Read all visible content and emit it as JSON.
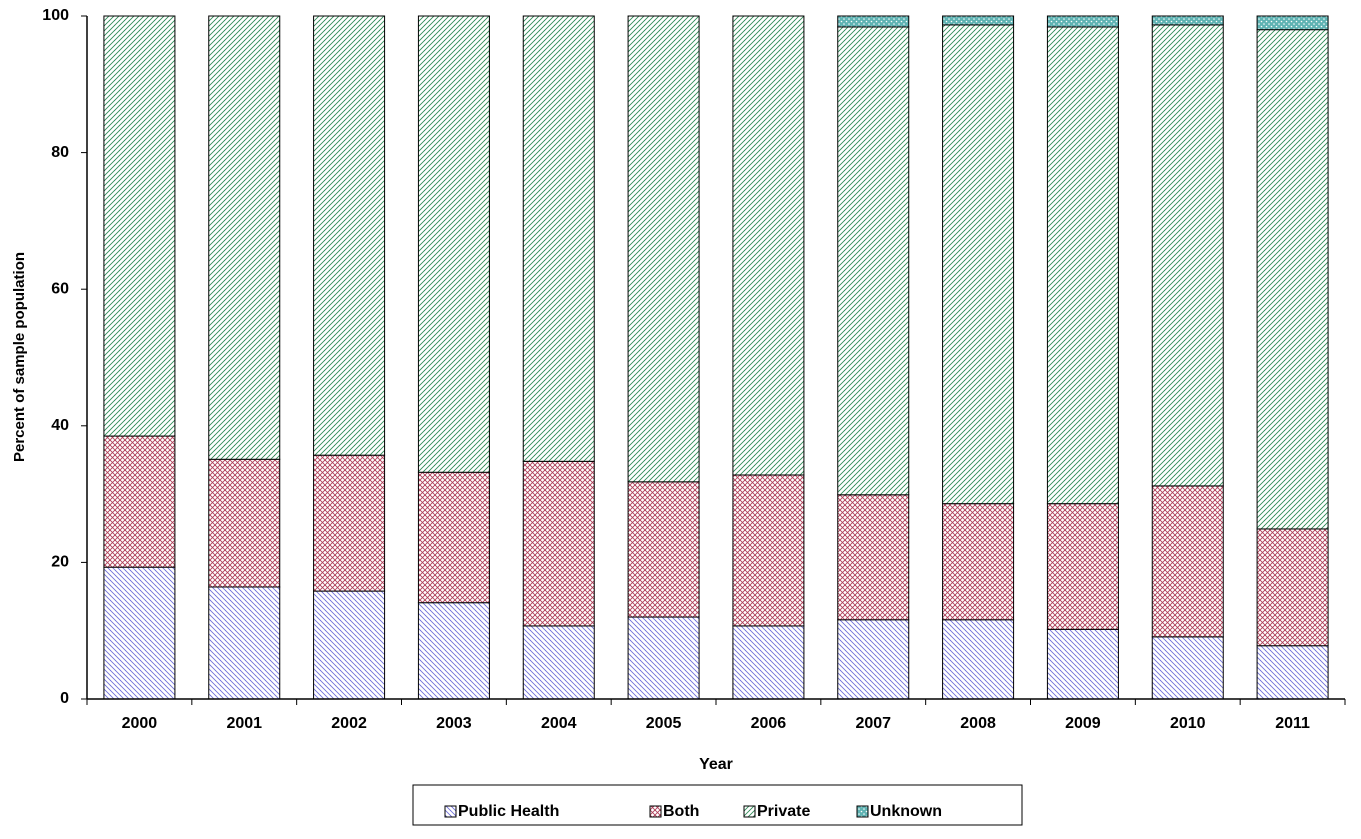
{
  "chart_data": {
    "type": "stacked_bar",
    "x_label": "Year",
    "y_label": "Percent of sample population",
    "categories": [
      "2000",
      "2001",
      "2002",
      "2003",
      "2004",
      "2005",
      "2006",
      "2007",
      "2008",
      "2009",
      "2010",
      "2011"
    ],
    "series": [
      {
        "name": "Public Health",
        "color": "#6f6fd8",
        "values": [
          19.3,
          16.4,
          15.8,
          14.1,
          10.7,
          12.0,
          10.7,
          11.6,
          11.6,
          10.2,
          9.1,
          7.8
        ]
      },
      {
        "name": "Both",
        "color": "#b0405a",
        "values": [
          19.2,
          18.7,
          19.9,
          19.1,
          24.1,
          19.8,
          22.1,
          18.3,
          17.0,
          18.4,
          22.1,
          17.1
        ]
      },
      {
        "name": "Private",
        "color": "#2e8b57",
        "values": [
          61.5,
          64.9,
          64.3,
          66.8,
          65.2,
          68.2,
          67.2,
          68.5,
          70.1,
          69.8,
          67.5,
          73.1
        ]
      },
      {
        "name": "Unknown",
        "color": "#5fb3b3",
        "values": [
          0,
          0,
          0,
          0,
          0,
          0,
          0,
          1.6,
          1.3,
          1.6,
          1.3,
          2.0
        ]
      }
    ],
    "ylim": [
      0,
      100
    ],
    "yticks": [
      0,
      20,
      40,
      60,
      80,
      100
    ]
  }
}
